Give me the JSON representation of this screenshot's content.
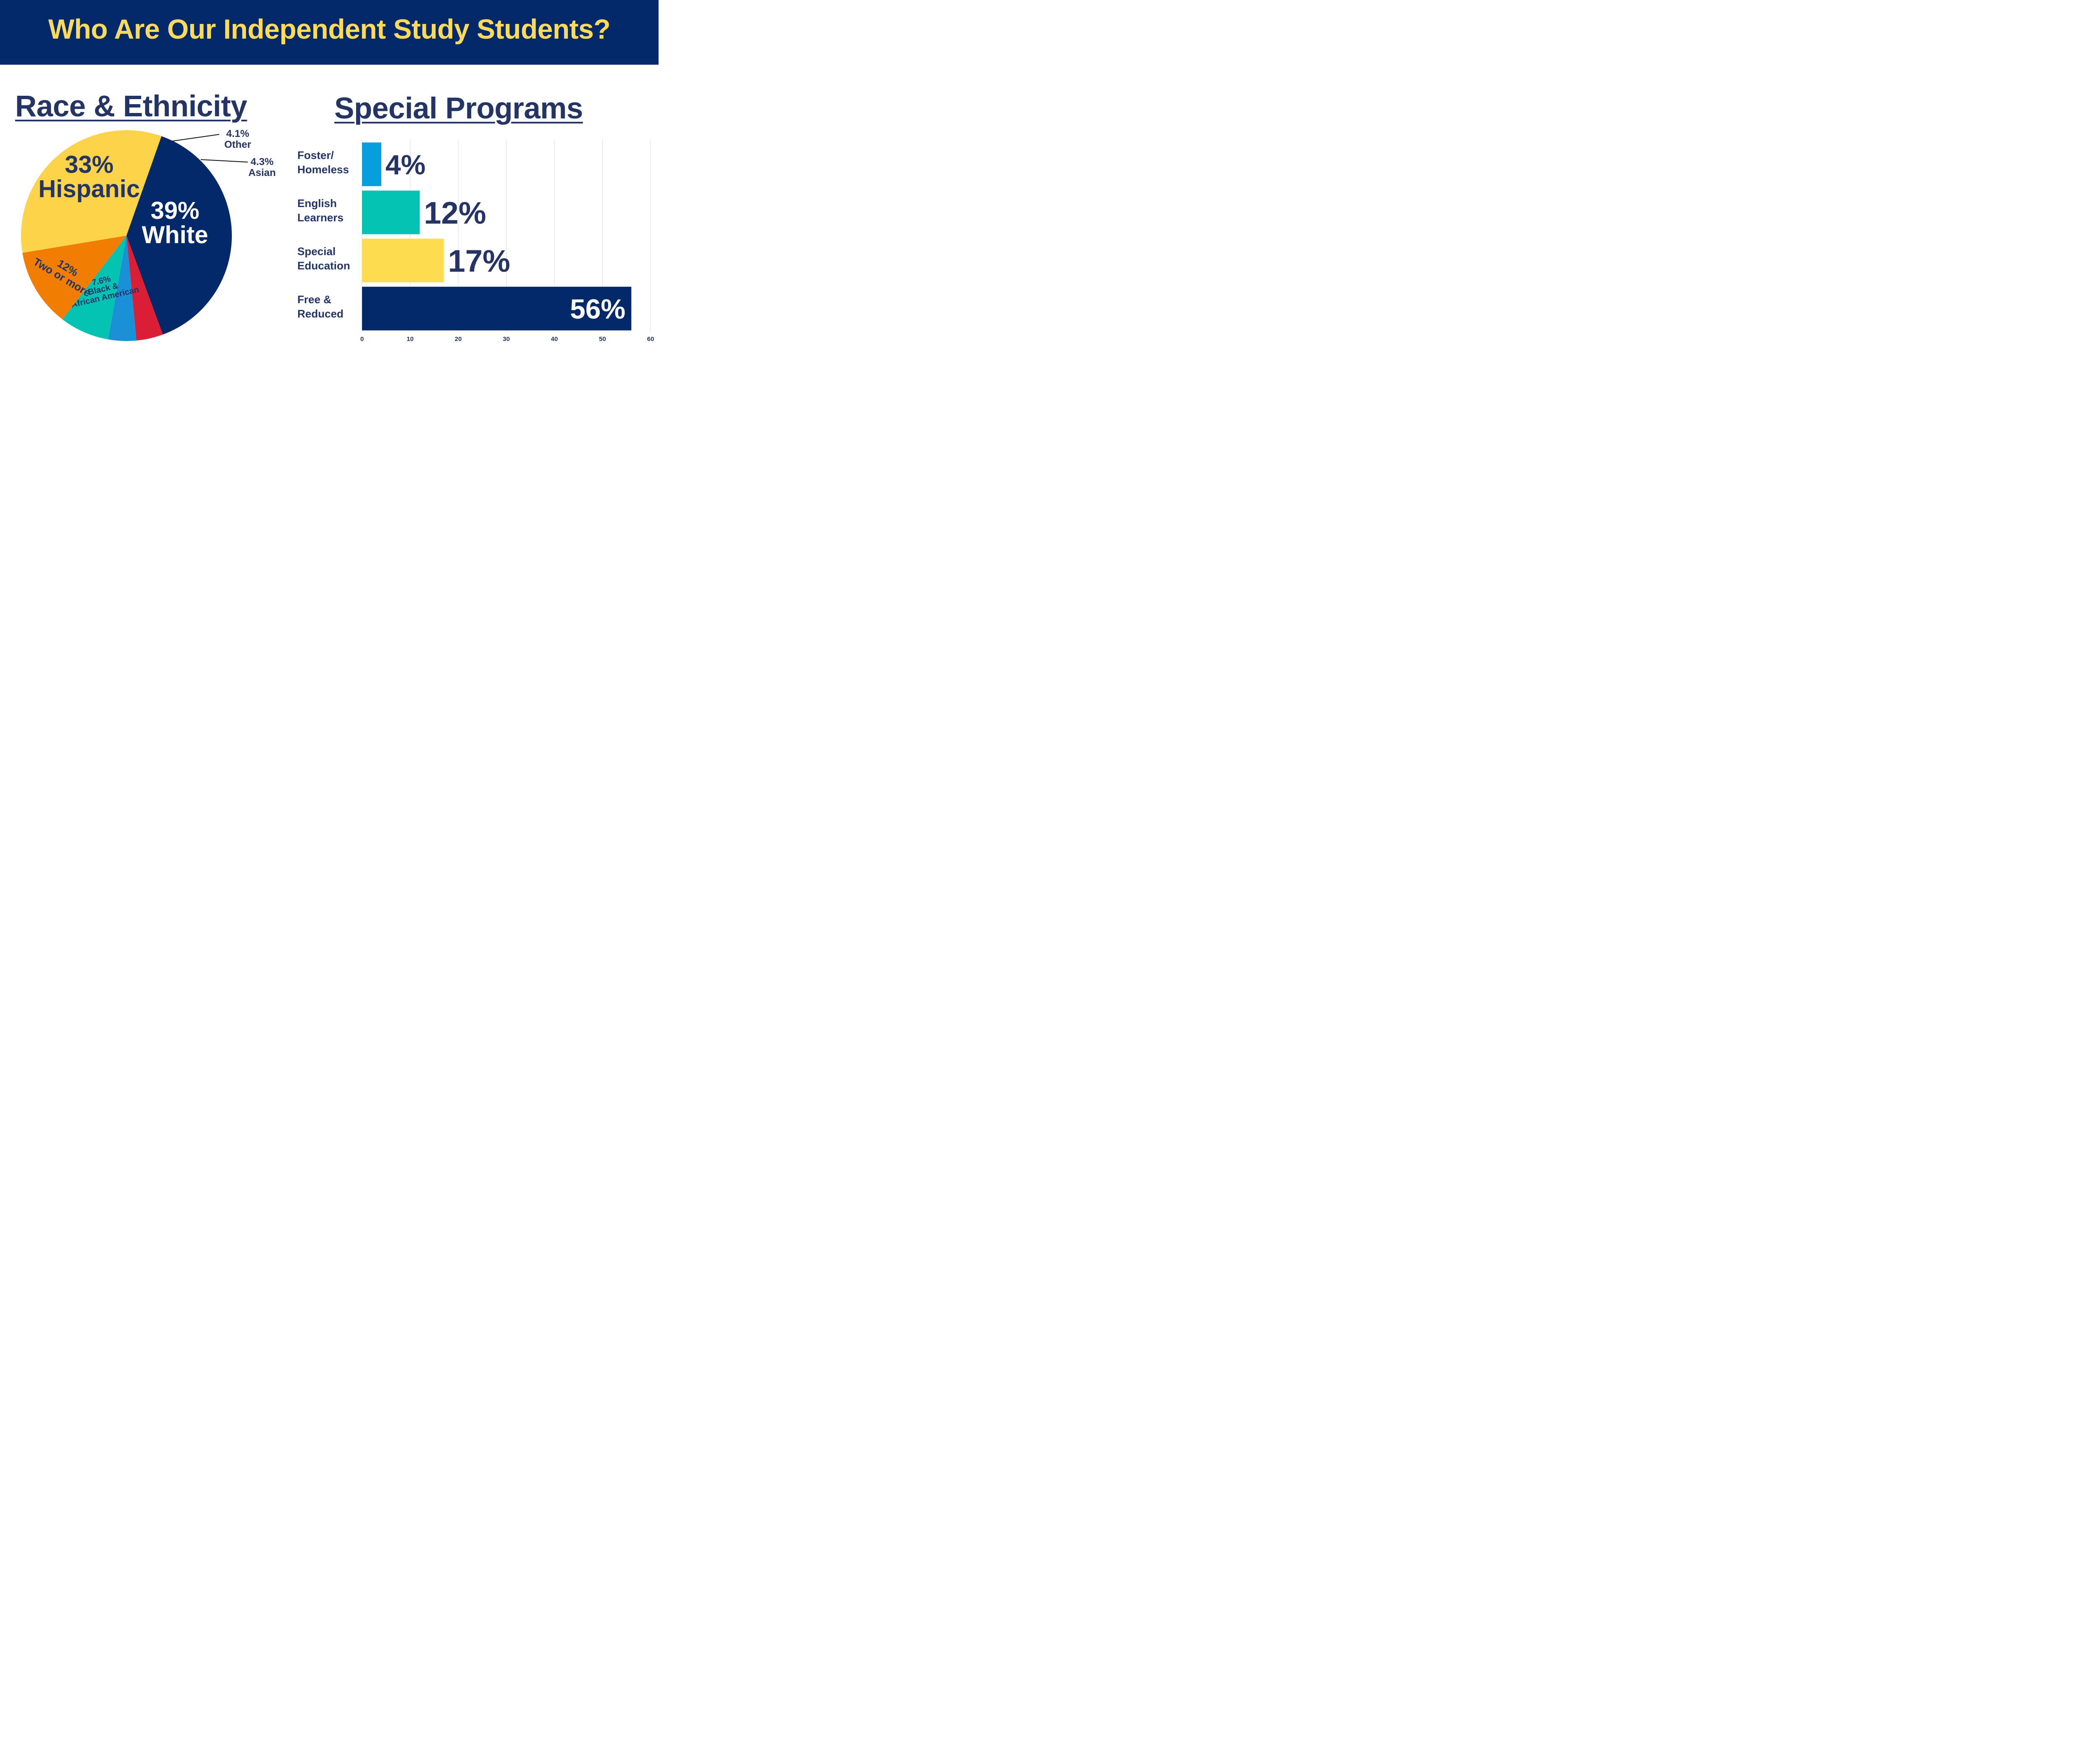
{
  "title": "Who Are Our Independent Study Students?",
  "charts": {
    "race_title": "Race & Ethnicity",
    "programs_title": "Special Programs"
  },
  "chart_data": [
    {
      "type": "pie",
      "title": "Race & Ethnicity",
      "slices": [
        {
          "label": "White",
          "value": 39,
          "value_label": "39%",
          "color": "#03296a"
        },
        {
          "label": "Other",
          "value": 4.1,
          "value_label": "4.1%",
          "color": "#d91e36"
        },
        {
          "label": "Asian",
          "value": 4.3,
          "value_label": "4.3%",
          "color": "#1a91d6"
        },
        {
          "label": "Black & African American",
          "value": 7.6,
          "value_label": "7.6%",
          "color": "#04c3b2"
        },
        {
          "label": "Two or more",
          "value": 12,
          "value_label": "12%",
          "color": "#f17d03"
        },
        {
          "label": "Hispanic",
          "value": 33,
          "value_label": "33%",
          "color": "#fdd34a"
        }
      ]
    },
    {
      "type": "bar",
      "orientation": "horizontal",
      "title": "Special Programs",
      "categories": [
        "Foster/ Homeless",
        "English Learners",
        "Special Education",
        "Free & Reduced"
      ],
      "category_lines": [
        [
          "Foster/",
          "Homeless"
        ],
        [
          "English",
          "Learners"
        ],
        [
          "Special",
          "Education"
        ],
        [
          "Free &",
          "Reduced"
        ]
      ],
      "values": [
        4,
        12,
        17,
        56
      ],
      "value_labels": [
        "4%",
        "12%",
        "17%",
        "56%"
      ],
      "colors": [
        "#079edf",
        "#04c3b2",
        "#fddc4f",
        "#03296a"
      ],
      "xlim": [
        0,
        60
      ],
      "xticks": [
        0,
        10,
        20,
        30,
        40,
        50,
        60
      ],
      "grid": true
    }
  ]
}
